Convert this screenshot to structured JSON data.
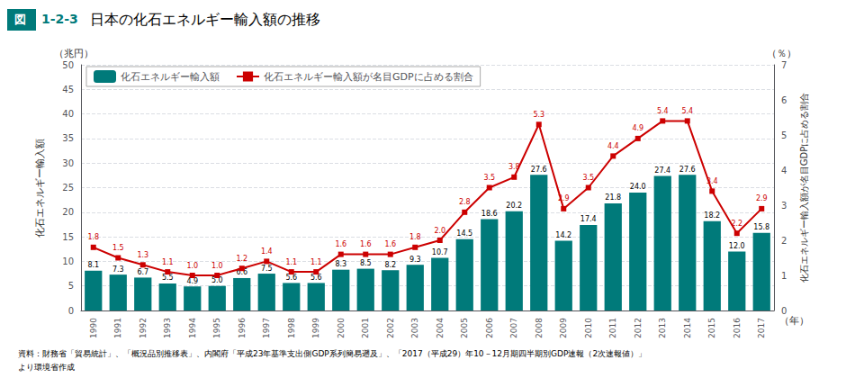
{
  "chart_data": {
    "type": "bar",
    "title": "日本の化石エネルギー輸入額の推移",
    "xlabel": "（年）",
    "ylabel": "化石エネルギー輸入額",
    "y2label": "化石エネルギー輸入額が名目GDPに占める割合",
    "annotations": [
      "図",
      "1-2-3",
      "（兆円）",
      "（％）",
      "資料：財務省「貿易統計」、「概況品別推移表」、内閣府「平成23年基準支出側GDP系列簡易遡及」、「2017（平成29）年10－12月期四半期別GDP速報（2次速報値）」",
      "より環境省作成"
    ],
    "categories": [
      "1990",
      "1991",
      "1992",
      "1993",
      "1994",
      "1995",
      "1996",
      "1997",
      "1998",
      "1999",
      "2000",
      "2001",
      "2002",
      "2003",
      "2004",
      "2005",
      "2006",
      "2007",
      "2008",
      "2009",
      "2010",
      "2011",
      "2012",
      "2013",
      "2014",
      "2015",
      "2016",
      "2017"
    ],
    "series": [
      {
        "name": "化石エネルギー輸入額",
        "type": "bar",
        "color": "#007a7a",
        "values": [
          8.1,
          7.3,
          6.7,
          5.5,
          4.9,
          5.0,
          6.6,
          7.5,
          5.6,
          5.6,
          8.3,
          8.5,
          8.2,
          9.3,
          10.7,
          14.5,
          18.6,
          20.2,
          27.6,
          14.2,
          17.4,
          21.8,
          24.0,
          27.4,
          27.6,
          18.2,
          12.0,
          15.8
        ],
        "value_labels": [
          "8.1",
          "7.3",
          "6.7",
          "5.5",
          "4.9",
          "5.0",
          "6.6",
          "7.5",
          "5.6",
          "5.6",
          "8.3",
          "8.5",
          "8.2",
          "9.3",
          "10.7",
          "14.5",
          "18.6",
          "20.2",
          "27.6",
          "14.2",
          "17.4",
          "21.8",
          "24.0",
          "27.4",
          "27.6",
          "18.2",
          "12.0",
          "15.8"
        ]
      },
      {
        "name": "化石エネルギー輸入額が名目GDPに占める割合",
        "type": "line",
        "axis": "y2",
        "color": "#cc0000",
        "marker": "square",
        "values": [
          1.8,
          1.5,
          1.3,
          1.1,
          1.0,
          1.0,
          1.2,
          1.4,
          1.1,
          1.1,
          1.6,
          1.6,
          1.6,
          1.8,
          2.0,
          2.8,
          3.5,
          3.8,
          5.3,
          2.9,
          3.5,
          4.4,
          4.9,
          5.4,
          5.4,
          3.4,
          2.2,
          2.9
        ],
        "value_labels": [
          "1.8",
          "1.5",
          "1.3",
          "1.1",
          "1.0",
          "1.0",
          "1.2",
          "1.4",
          "1.1",
          "1.1",
          "1.6",
          "1.6",
          "1.6",
          "1.8",
          "2.0",
          "2.8",
          "3.5",
          "3.8",
          "5.3",
          "2.9",
          "3.5",
          "4.4",
          "4.9",
          "5.4",
          "5.4",
          "3.4",
          "2.2",
          "2.9"
        ]
      }
    ],
    "ylim": [
      0,
      50
    ],
    "yticks": [
      0,
      5,
      10,
      15,
      20,
      25,
      30,
      35,
      40,
      45,
      50
    ],
    "y2lim": [
      0,
      7
    ],
    "y2ticks": [
      0,
      1,
      2,
      3,
      4,
      5,
      6,
      7
    ],
    "grid": true,
    "legend": "upper left",
    "data_labels": true
  }
}
